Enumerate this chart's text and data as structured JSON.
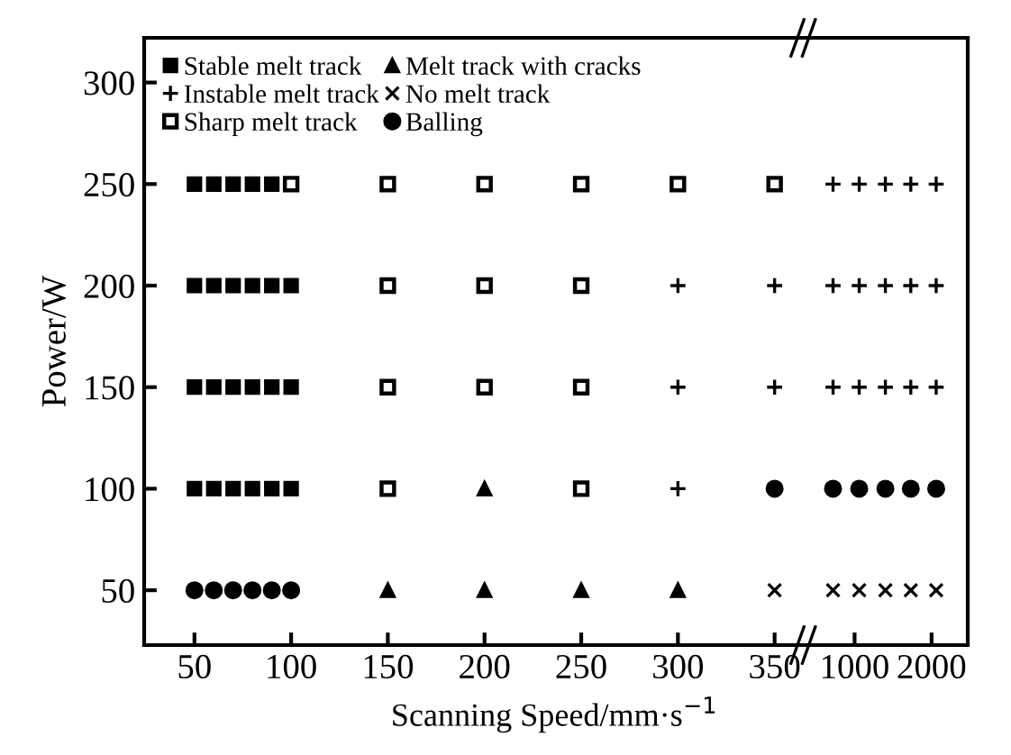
{
  "chart_data": [
    {
      "type": "scatter",
      "xlabel": "Scanning Speed/mm·s$^{−1}$",
      "ylabel": "Power/W",
      "xlim": [
        24,
        366
      ],
      "xticks": [
        50,
        100,
        150,
        200,
        250,
        300,
        350
      ],
      "ylim": [
        23,
        322
      ],
      "yticks": [
        50,
        100,
        150,
        200,
        250,
        300
      ],
      "legend": "top left",
      "series": [
        {
          "name": "Stable melt track",
          "color": "#000000",
          "marker": "square",
          "x": [
            50,
            60,
            70,
            80,
            90,
            50,
            60,
            70,
            80,
            90,
            100,
            50,
            60,
            70,
            80,
            90,
            100,
            50,
            60,
            70,
            80,
            90,
            100
          ],
          "values": [
            250,
            250,
            250,
            250,
            250,
            200,
            200,
            200,
            200,
            200,
            200,
            150,
            150,
            150,
            150,
            150,
            150,
            100,
            100,
            100,
            100,
            100,
            100
          ]
        },
        {
          "name": "Instable melt track",
          "color": "#000000",
          "marker": "plus",
          "x": [
            300,
            300,
            300,
            350,
            350
          ],
          "values": [
            200,
            150,
            100,
            200,
            150
          ]
        },
        {
          "name": "Sharp melt track",
          "color": "#000000",
          "x": [
            100,
            150,
            150,
            150,
            150,
            200,
            200,
            200,
            250,
            250,
            250,
            250,
            300,
            350
          ],
          "values": [
            250,
            250,
            200,
            150,
            100,
            250,
            200,
            150,
            250,
            200,
            150,
            100,
            250,
            250
          ]
        },
        {
          "name": "Melt track with cracks",
          "color": "#000000",
          "marker": "triangle",
          "x": [
            150,
            200,
            200,
            250,
            300
          ],
          "values": [
            50,
            100,
            50,
            50,
            50
          ]
        },
        {
          "name": "No melt track",
          "color": "#000000",
          "marker": "x",
          "x": [
            350
          ],
          "values": [
            50
          ]
        },
        {
          "name": "Balling",
          "color": "#000000",
          "marker": "circle",
          "x": [
            50,
            60,
            70,
            80,
            90,
            100,
            350
          ],
          "values": [
            50,
            50,
            50,
            50,
            50,
            50,
            100
          ]
        }
      ]
    },
    {
      "type": "scatter",
      "xlim": [
        363,
        2470
      ],
      "xticks": [
        1000,
        2000
      ],
      "ylim": [
        23,
        322
      ],
      "yticks": [
        50,
        100,
        150,
        200,
        250,
        300
      ],
      "tick_labels": "x",
      "series": [
        {
          "color": "#000000",
          "marker": "plus",
          "x": [
            720,
            1060,
            1400,
            1730,
            2060,
            720,
            1060,
            1400,
            1730,
            2060,
            720,
            1060,
            1400,
            1730,
            2060
          ],
          "values": [
            250,
            250,
            250,
            250,
            250,
            200,
            200,
            200,
            200,
            200,
            150,
            150,
            150,
            150,
            150
          ]
        },
        {
          "color": "#000000",
          "marker": "circle",
          "x": [
            720,
            1060,
            1400,
            1730,
            2060
          ],
          "values": [
            100,
            100,
            100,
            100,
            100
          ]
        },
        {
          "color": "#000000",
          "marker": "x",
          "x": [
            720,
            1060,
            1400,
            1730,
            2060
          ],
          "values": [
            50,
            50,
            50,
            50,
            50
          ]
        }
      ]
    }
  ]
}
